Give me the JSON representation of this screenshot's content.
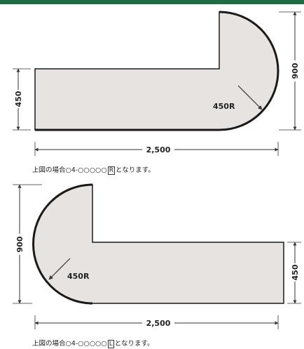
{
  "colors": {
    "header": "#1f6a44",
    "shape_fill": "#e6e3e0",
    "outline": "#1a1a1a",
    "dimension": "#333333"
  },
  "diagram1": {
    "width_dim": "2,500",
    "left_height_dim": "450",
    "right_height_dim": "900",
    "radius_label": "450R",
    "caption": {
      "prefix": "上図の場合○4-○○○○○",
      "code": "R",
      "suffix": "となります。"
    }
  },
  "diagram2": {
    "width_dim": "2,500",
    "left_height_dim": "900",
    "right_height_dim": "450",
    "radius_label": "450R",
    "caption": {
      "prefix": "上図の場合○4-○○○○○",
      "code": "L",
      "suffix": "となります。"
    }
  }
}
